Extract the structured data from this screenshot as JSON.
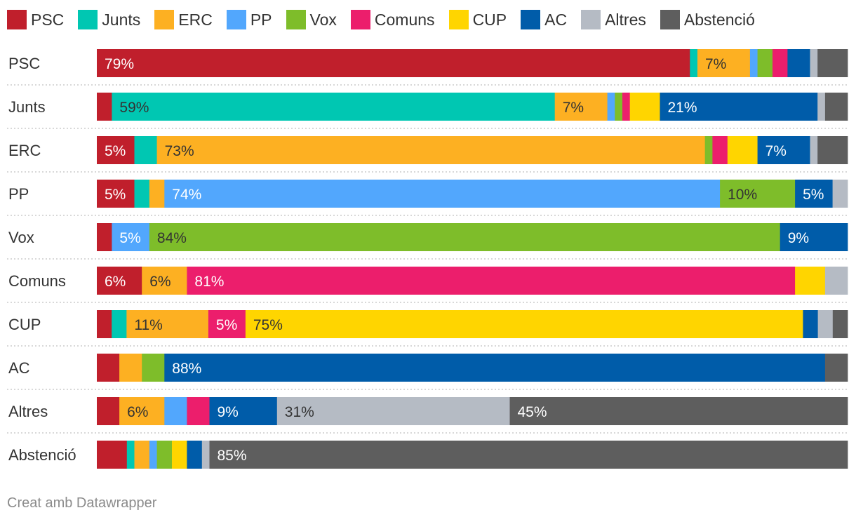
{
  "legend": [
    {
      "name": "PSC",
      "color": "#c01f2c"
    },
    {
      "name": "Junts",
      "color": "#00c7b2"
    },
    {
      "name": "ERC",
      "color": "#fdb022"
    },
    {
      "name": "PP",
      "color": "#52a7fd"
    },
    {
      "name": "Vox",
      "color": "#7ebd2a"
    },
    {
      "name": "Comuns",
      "color": "#ec1e6c"
    },
    {
      "name": "CUP",
      "color": "#ffd500"
    },
    {
      "name": "AC",
      "color": "#005ca9"
    },
    {
      "name": "Altres",
      "color": "#b5bbc4"
    },
    {
      "name": "Abstenció",
      "color": "#5e5e5e"
    }
  ],
  "chart_data": {
    "type": "bar",
    "orientation": "horizontal",
    "stacked": true,
    "unit": "%",
    "categories": [
      "PSC",
      "Junts",
      "ERC",
      "PP",
      "Vox",
      "Comuns",
      "CUP",
      "AC",
      "Altres",
      "Abstenció"
    ],
    "series": [
      {
        "name": "PSC",
        "color": "#c01f2c",
        "values": [
          79,
          2,
          5,
          5,
          2,
          6,
          2,
          3,
          3,
          4
        ]
      },
      {
        "name": "Junts",
        "color": "#00c7b2",
        "values": [
          1,
          59,
          3,
          2,
          0,
          0,
          2,
          0,
          0,
          1
        ]
      },
      {
        "name": "ERC",
        "color": "#fdb022",
        "values": [
          7,
          7,
          73,
          2,
          0,
          6,
          11,
          3,
          6,
          2
        ]
      },
      {
        "name": "PP",
        "color": "#52a7fd",
        "values": [
          1,
          1,
          0,
          74,
          5,
          0,
          0,
          0,
          3,
          1
        ]
      },
      {
        "name": "Vox",
        "color": "#7ebd2a",
        "values": [
          2,
          1,
          1,
          10,
          84,
          0,
          0,
          3,
          0,
          2
        ]
      },
      {
        "name": "Comuns",
        "color": "#ec1e6c",
        "values": [
          2,
          1,
          2,
          0,
          0,
          81,
          5,
          0,
          3,
          0
        ]
      },
      {
        "name": "CUP",
        "color": "#ffd500",
        "values": [
          0,
          4,
          4,
          0,
          0,
          4,
          75,
          0,
          0,
          2
        ]
      },
      {
        "name": "AC",
        "color": "#005ca9",
        "values": [
          3,
          21,
          7,
          5,
          9,
          0,
          2,
          88,
          9,
          2
        ]
      },
      {
        "name": "Altres",
        "color": "#b5bbc4",
        "values": [
          1,
          1,
          1,
          2,
          0,
          3,
          2,
          0,
          31,
          1
        ]
      },
      {
        "name": "Abstenció",
        "color": "#5e5e5e",
        "values": [
          4,
          3,
          4,
          0,
          0,
          0,
          2,
          3,
          45,
          85
        ]
      }
    ],
    "label_threshold": 5,
    "xlim": [
      0,
      100
    ]
  },
  "footer": "Creat amb Datawrapper"
}
